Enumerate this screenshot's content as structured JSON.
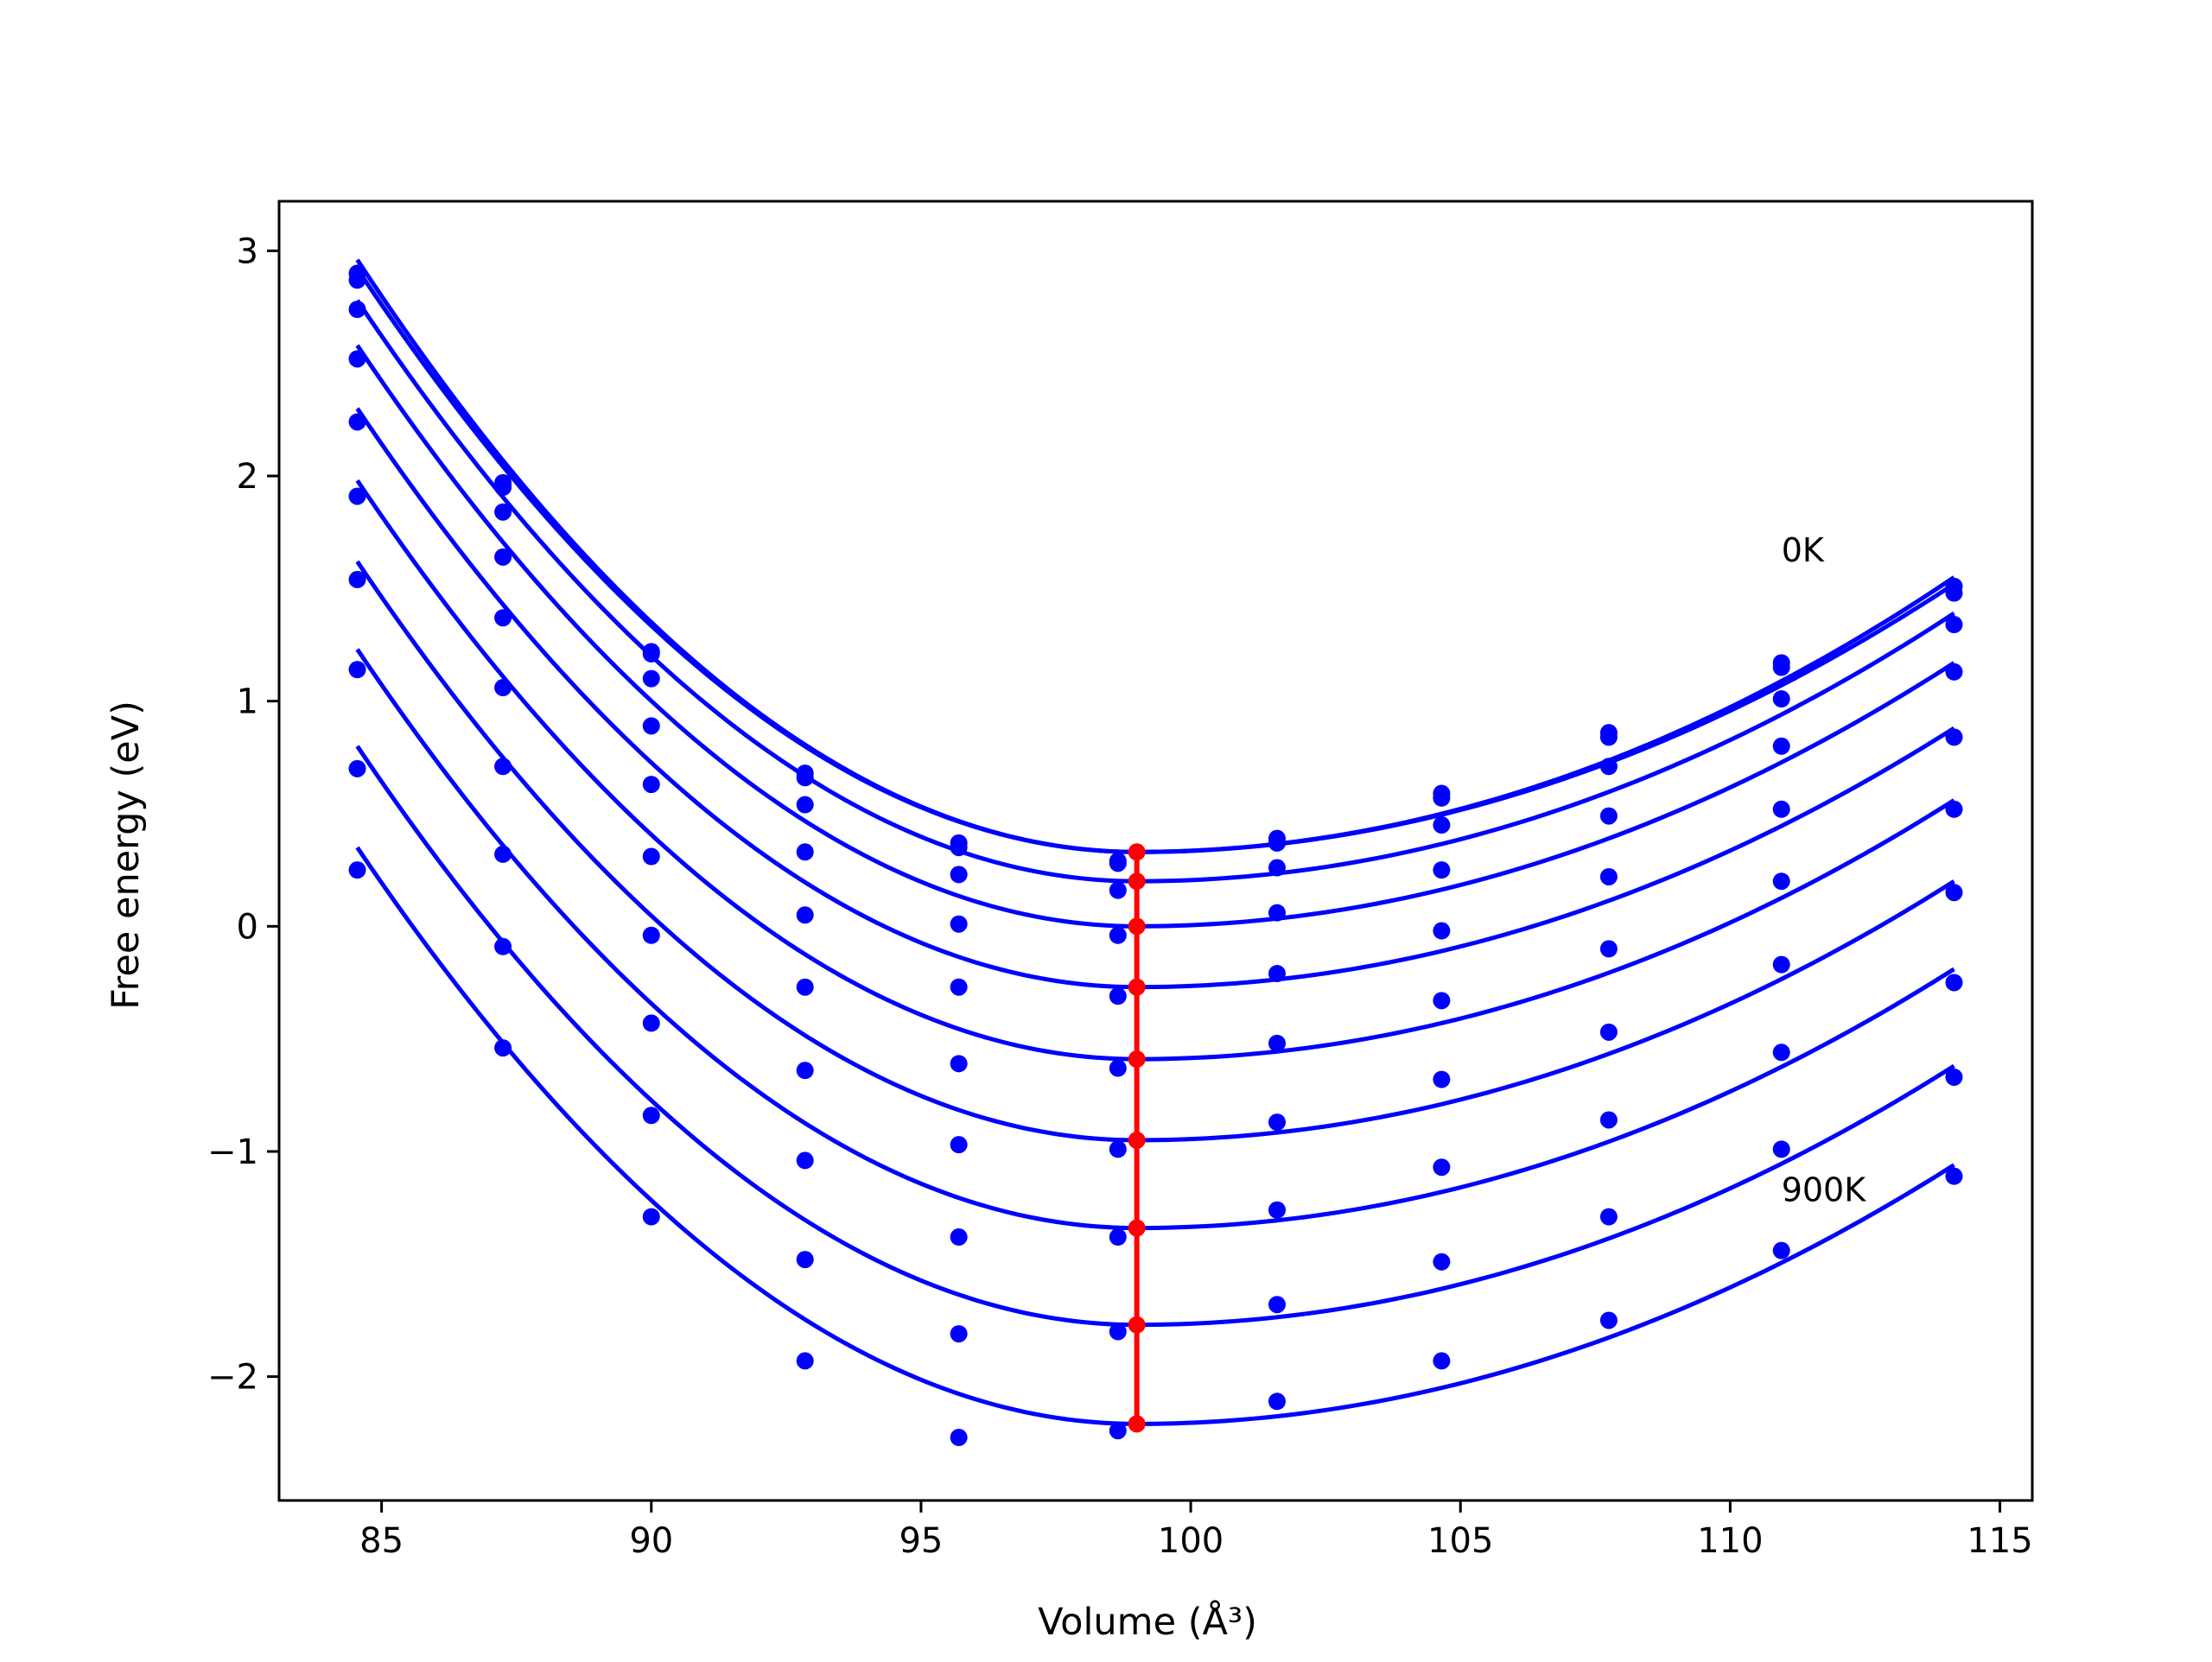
{
  "chart_data": {
    "type": "line",
    "title": "",
    "xlabel": "Volume (Å³)",
    "ylabel": "Free energy (eV)",
    "xlim": [
      83.1,
      115.6
    ],
    "ylim": [
      -2.55,
      3.22
    ],
    "x_ticks": [
      85,
      90,
      95,
      100,
      105,
      110,
      115
    ],
    "x_tick_labels": [
      "85",
      "90",
      "95",
      "100",
      "105",
      "110",
      "115"
    ],
    "y_ticks": [
      -2,
      -1,
      0,
      1,
      2,
      3
    ],
    "y_tick_labels": [
      "−2",
      "−1",
      "0",
      "1",
      "2",
      "3"
    ],
    "grid": false,
    "legend": "none",
    "colors": {
      "fit": "#0000ff",
      "points": "#0000ff",
      "minimum": "#ff0000",
      "frame": "#000000"
    },
    "annotations": [
      {
        "text": "0K",
        "x": 110.95,
        "y": 1.62
      },
      {
        "text": "900K",
        "x": 110.95,
        "y": -1.22
      }
    ],
    "sample_volumes": [
      84.55,
      87.25,
      90.0,
      92.85,
      95.7,
      98.65,
      101.6,
      104.65,
      107.75,
      110.95,
      114.15
    ],
    "series": [
      {
        "name": "0K",
        "fit": {
          "min_volume": 99.0,
          "min_energy": 0.33,
          "curve_start": 2.96,
          "curve_end": 1.55
        },
        "points": [
          2.9,
          1.97,
          1.22,
          0.68,
          0.37,
          0.29,
          0.39,
          0.59,
          0.86,
          1.17,
          1.51
        ]
      },
      {
        "fit": {
          "min_volume": 99.0,
          "min_energy": 0.33,
          "curve_start": 2.92,
          "curve_end": 1.52
        },
        "points": [
          2.87,
          1.95,
          1.21,
          0.66,
          0.35,
          0.28,
          0.37,
          0.57,
          0.84,
          1.15,
          1.48
        ]
      },
      {
        "fit": {
          "min_volume": 99.0,
          "min_energy": 0.2,
          "curve_start": 2.78,
          "curve_end": 1.39
        },
        "points": [
          2.74,
          1.84,
          1.1,
          0.54,
          0.23,
          0.16,
          0.26,
          0.45,
          0.71,
          1.01,
          1.34
        ]
      },
      {
        "fit": {
          "min_volume": 99.0,
          "min_energy": 0.0,
          "curve_start": 2.58,
          "curve_end": 1.17
        },
        "points": [
          2.52,
          1.64,
          0.89,
          0.33,
          0.01,
          -0.04,
          0.06,
          0.25,
          0.49,
          0.8,
          1.13
        ]
      },
      {
        "fit": {
          "min_volume": 99.0,
          "min_energy": -0.27,
          "curve_start": 2.3,
          "curve_end": 0.88
        },
        "points": [
          2.24,
          1.37,
          0.63,
          0.05,
          -0.27,
          -0.31,
          -0.21,
          -0.02,
          0.22,
          0.52,
          0.84
        ]
      },
      {
        "fit": {
          "min_volume": 99.0,
          "min_energy": -0.59,
          "curve_start": 1.98,
          "curve_end": 0.56
        },
        "points": [
          1.91,
          1.06,
          0.31,
          -0.27,
          -0.61,
          -0.63,
          -0.52,
          -0.33,
          -0.1,
          0.2,
          0.52
        ]
      },
      {
        "fit": {
          "min_volume": 99.0,
          "min_energy": -0.95,
          "curve_start": 1.62,
          "curve_end": 0.2
        },
        "points": [
          1.54,
          0.71,
          -0.04,
          -0.64,
          -0.97,
          -0.99,
          -0.87,
          -0.68,
          -0.47,
          -0.17,
          0.15
        ]
      },
      {
        "fit": {
          "min_volume": 99.0,
          "min_energy": -1.34,
          "curve_start": 1.23,
          "curve_end": -0.19
        },
        "points": [
          1.14,
          0.32,
          -0.43,
          -1.04,
          -1.38,
          -1.38,
          -1.26,
          -1.07,
          -0.86,
          -0.56,
          -0.25
        ]
      },
      {
        "fit": {
          "min_volume": 99.0,
          "min_energy": -1.77,
          "curve_start": 0.8,
          "curve_end": -0.62
        },
        "points": [
          0.7,
          -0.09,
          -0.84,
          -1.48,
          -1.81,
          -1.8,
          -1.68,
          -1.49,
          -1.29,
          -0.99,
          -0.67
        ]
      },
      {
        "name": "900K",
        "fit": {
          "min_volume": 99.0,
          "min_energy": -2.21,
          "curve_start": 0.35,
          "curve_end": -1.06
        },
        "points": [
          0.25,
          -0.54,
          -1.29,
          -1.93,
          -2.27,
          -2.24,
          -2.11,
          -1.93,
          -1.75,
          -1.44,
          -1.11
        ]
      }
    ],
    "minimum_line": {
      "x": 99.0,
      "y": [
        0.33,
        0.2,
        0.0,
        -0.27,
        -0.59,
        -0.95,
        -1.34,
        -1.77,
        -2.21
      ]
    }
  }
}
